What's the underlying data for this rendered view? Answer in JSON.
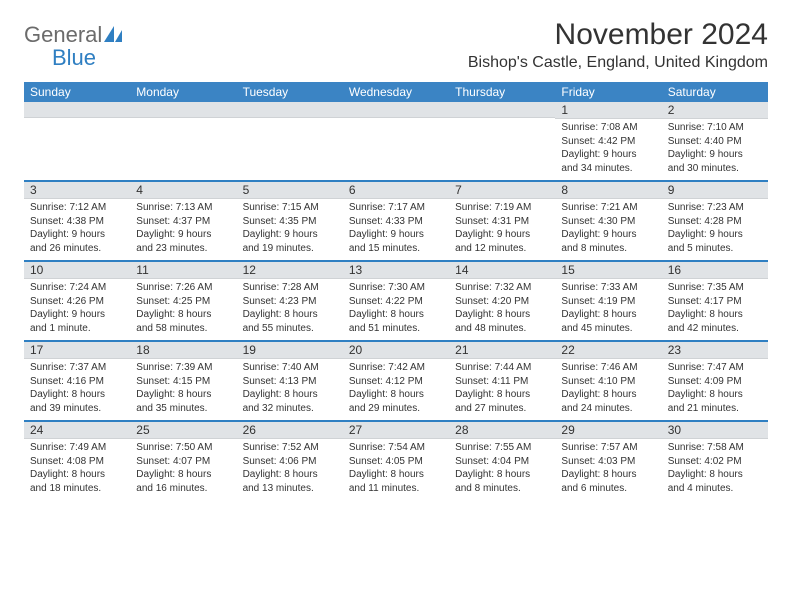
{
  "brand": {
    "part1": "General",
    "part2": "Blue"
  },
  "title": "November 2024",
  "location": "Bishop's Castle, England, United Kingdom",
  "colors": {
    "header_bg": "#3b84c4",
    "header_text": "#ffffff",
    "daynum_bg": "#e0e3e6",
    "week_divider": "#2f7fc2",
    "text": "#333333",
    "logo_gray": "#6b6b6b",
    "logo_blue": "#2f7fc2"
  },
  "dow": [
    "Sunday",
    "Monday",
    "Tuesday",
    "Wednesday",
    "Thursday",
    "Friday",
    "Saturday"
  ],
  "weeks": [
    [
      {
        "n": "",
        "sr": "",
        "ss": "",
        "dl": ""
      },
      {
        "n": "",
        "sr": "",
        "ss": "",
        "dl": ""
      },
      {
        "n": "",
        "sr": "",
        "ss": "",
        "dl": ""
      },
      {
        "n": "",
        "sr": "",
        "ss": "",
        "dl": ""
      },
      {
        "n": "",
        "sr": "",
        "ss": "",
        "dl": ""
      },
      {
        "n": "1",
        "sr": "Sunrise: 7:08 AM",
        "ss": "Sunset: 4:42 PM",
        "dl": "Daylight: 9 hours and 34 minutes."
      },
      {
        "n": "2",
        "sr": "Sunrise: 7:10 AM",
        "ss": "Sunset: 4:40 PM",
        "dl": "Daylight: 9 hours and 30 minutes."
      }
    ],
    [
      {
        "n": "3",
        "sr": "Sunrise: 7:12 AM",
        "ss": "Sunset: 4:38 PM",
        "dl": "Daylight: 9 hours and 26 minutes."
      },
      {
        "n": "4",
        "sr": "Sunrise: 7:13 AM",
        "ss": "Sunset: 4:37 PM",
        "dl": "Daylight: 9 hours and 23 minutes."
      },
      {
        "n": "5",
        "sr": "Sunrise: 7:15 AM",
        "ss": "Sunset: 4:35 PM",
        "dl": "Daylight: 9 hours and 19 minutes."
      },
      {
        "n": "6",
        "sr": "Sunrise: 7:17 AM",
        "ss": "Sunset: 4:33 PM",
        "dl": "Daylight: 9 hours and 15 minutes."
      },
      {
        "n": "7",
        "sr": "Sunrise: 7:19 AM",
        "ss": "Sunset: 4:31 PM",
        "dl": "Daylight: 9 hours and 12 minutes."
      },
      {
        "n": "8",
        "sr": "Sunrise: 7:21 AM",
        "ss": "Sunset: 4:30 PM",
        "dl": "Daylight: 9 hours and 8 minutes."
      },
      {
        "n": "9",
        "sr": "Sunrise: 7:23 AM",
        "ss": "Sunset: 4:28 PM",
        "dl": "Daylight: 9 hours and 5 minutes."
      }
    ],
    [
      {
        "n": "10",
        "sr": "Sunrise: 7:24 AM",
        "ss": "Sunset: 4:26 PM",
        "dl": "Daylight: 9 hours and 1 minute."
      },
      {
        "n": "11",
        "sr": "Sunrise: 7:26 AM",
        "ss": "Sunset: 4:25 PM",
        "dl": "Daylight: 8 hours and 58 minutes."
      },
      {
        "n": "12",
        "sr": "Sunrise: 7:28 AM",
        "ss": "Sunset: 4:23 PM",
        "dl": "Daylight: 8 hours and 55 minutes."
      },
      {
        "n": "13",
        "sr": "Sunrise: 7:30 AM",
        "ss": "Sunset: 4:22 PM",
        "dl": "Daylight: 8 hours and 51 minutes."
      },
      {
        "n": "14",
        "sr": "Sunrise: 7:32 AM",
        "ss": "Sunset: 4:20 PM",
        "dl": "Daylight: 8 hours and 48 minutes."
      },
      {
        "n": "15",
        "sr": "Sunrise: 7:33 AM",
        "ss": "Sunset: 4:19 PM",
        "dl": "Daylight: 8 hours and 45 minutes."
      },
      {
        "n": "16",
        "sr": "Sunrise: 7:35 AM",
        "ss": "Sunset: 4:17 PM",
        "dl": "Daylight: 8 hours and 42 minutes."
      }
    ],
    [
      {
        "n": "17",
        "sr": "Sunrise: 7:37 AM",
        "ss": "Sunset: 4:16 PM",
        "dl": "Daylight: 8 hours and 39 minutes."
      },
      {
        "n": "18",
        "sr": "Sunrise: 7:39 AM",
        "ss": "Sunset: 4:15 PM",
        "dl": "Daylight: 8 hours and 35 minutes."
      },
      {
        "n": "19",
        "sr": "Sunrise: 7:40 AM",
        "ss": "Sunset: 4:13 PM",
        "dl": "Daylight: 8 hours and 32 minutes."
      },
      {
        "n": "20",
        "sr": "Sunrise: 7:42 AM",
        "ss": "Sunset: 4:12 PM",
        "dl": "Daylight: 8 hours and 29 minutes."
      },
      {
        "n": "21",
        "sr": "Sunrise: 7:44 AM",
        "ss": "Sunset: 4:11 PM",
        "dl": "Daylight: 8 hours and 27 minutes."
      },
      {
        "n": "22",
        "sr": "Sunrise: 7:46 AM",
        "ss": "Sunset: 4:10 PM",
        "dl": "Daylight: 8 hours and 24 minutes."
      },
      {
        "n": "23",
        "sr": "Sunrise: 7:47 AM",
        "ss": "Sunset: 4:09 PM",
        "dl": "Daylight: 8 hours and 21 minutes."
      }
    ],
    [
      {
        "n": "24",
        "sr": "Sunrise: 7:49 AM",
        "ss": "Sunset: 4:08 PM",
        "dl": "Daylight: 8 hours and 18 minutes."
      },
      {
        "n": "25",
        "sr": "Sunrise: 7:50 AM",
        "ss": "Sunset: 4:07 PM",
        "dl": "Daylight: 8 hours and 16 minutes."
      },
      {
        "n": "26",
        "sr": "Sunrise: 7:52 AM",
        "ss": "Sunset: 4:06 PM",
        "dl": "Daylight: 8 hours and 13 minutes."
      },
      {
        "n": "27",
        "sr": "Sunrise: 7:54 AM",
        "ss": "Sunset: 4:05 PM",
        "dl": "Daylight: 8 hours and 11 minutes."
      },
      {
        "n": "28",
        "sr": "Sunrise: 7:55 AM",
        "ss": "Sunset: 4:04 PM",
        "dl": "Daylight: 8 hours and 8 minutes."
      },
      {
        "n": "29",
        "sr": "Sunrise: 7:57 AM",
        "ss": "Sunset: 4:03 PM",
        "dl": "Daylight: 8 hours and 6 minutes."
      },
      {
        "n": "30",
        "sr": "Sunrise: 7:58 AM",
        "ss": "Sunset: 4:02 PM",
        "dl": "Daylight: 8 hours and 4 minutes."
      }
    ]
  ]
}
